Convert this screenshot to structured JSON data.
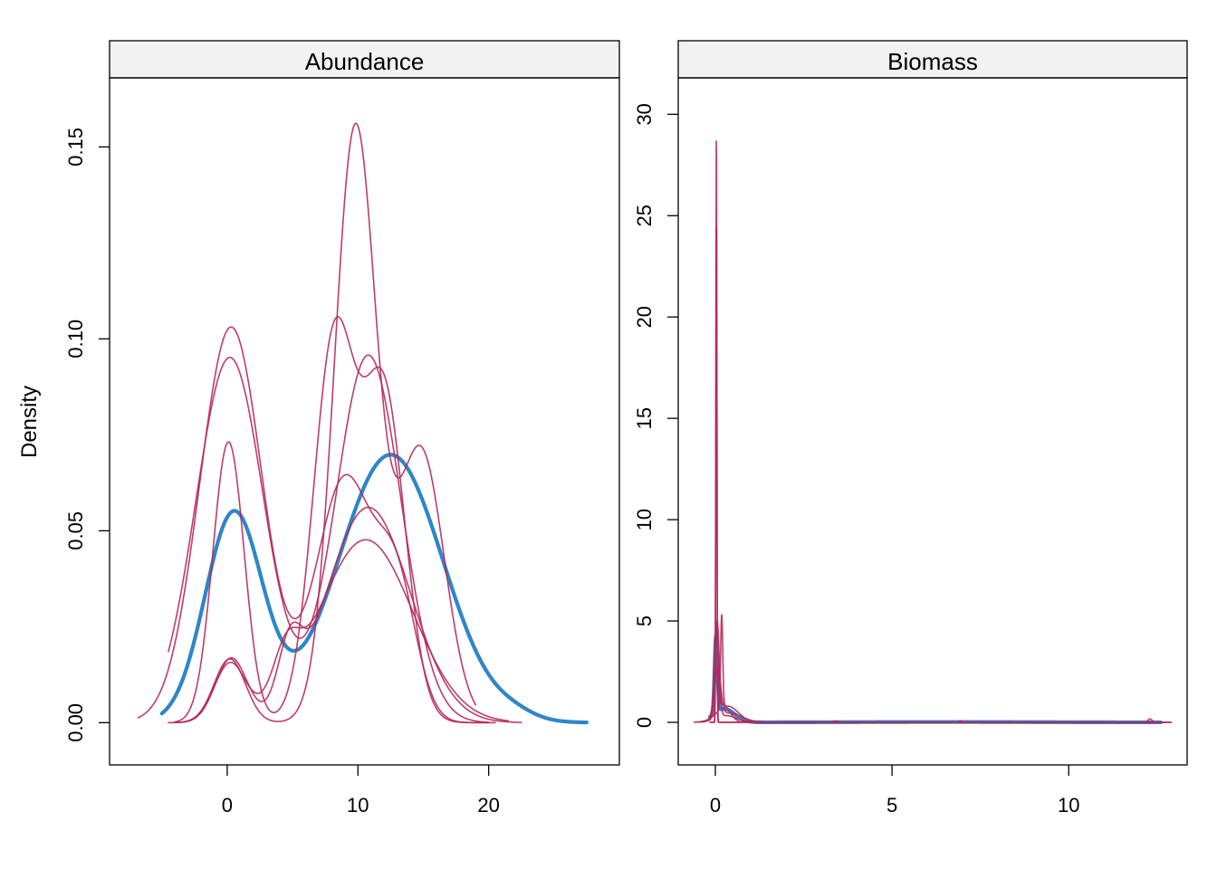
{
  "figure": {
    "ylabel": "Density"
  },
  "colors": {
    "imputed": "#B5285A",
    "observed": "#2E86C8",
    "strip": "#F2F2F2",
    "frame": "#000000"
  },
  "chart_data": [
    {
      "type": "line",
      "title": "Abundance",
      "xlabel": "",
      "ylabel": "Density",
      "xlim": [
        -9,
        30
      ],
      "ylim": [
        -0.011,
        0.168
      ],
      "xticks": [
        0,
        10,
        20
      ],
      "yticks": [
        0.0,
        0.05,
        0.1,
        0.15
      ],
      "ytick_labels": [
        "0.00",
        "0.05",
        "0.10",
        "0.15"
      ],
      "grid": false,
      "observed": {
        "components": [
          {
            "m": 0.5,
            "s": 2.2,
            "w": 0.3
          },
          {
            "m": 12.5,
            "s": 4.0,
            "w": 0.7
          },
          {
            "m": 22.0,
            "s": 1.5,
            "w": 0.005
          }
        ],
        "xrange": [
          -5.0,
          27.5
        ]
      },
      "imputed": [
        {
          "components": [
            {
              "m": 0.3,
              "s": 2.4,
              "w": 0.62
            },
            {
              "m": 9.0,
              "s": 2.2,
              "w": 0.35
            },
            {
              "m": 13.0,
              "s": 1.5,
              "w": 0.12
            }
          ],
          "xrange": [
            -6.8,
            20.5
          ]
        },
        {
          "components": [
            {
              "m": 0.2,
              "s": 2.6,
              "w": 0.62
            },
            {
              "m": 10.8,
              "s": 2.5,
              "w": 0.6
            }
          ],
          "xrange": [
            -4.5,
            20.0
          ]
        },
        {
          "components": [
            {
              "m": 0.1,
              "s": 1.2,
              "w": 0.22
            },
            {
              "m": 8.2,
              "s": 1.6,
              "w": 0.4
            },
            {
              "m": 12.0,
              "s": 1.6,
              "w": 0.34
            }
          ],
          "xrange": [
            -4.0,
            20.0
          ]
        },
        {
          "components": [
            {
              "m": 9.8,
              "s": 1.6,
              "w": 0.62
            },
            {
              "m": 14.8,
              "s": 1.8,
              "w": 0.32
            },
            {
              "m": 0.2,
              "s": 1.2,
              "w": 0.05
            }
          ],
          "xrange": [
            -3.0,
            19.0
          ]
        },
        {
          "components": [
            {
              "m": 0.3,
              "s": 1.2,
              "w": 0.05
            },
            {
              "m": 10.8,
              "s": 3.2,
              "w": 0.45
            },
            {
              "m": 4.8,
              "s": 0.9,
              "w": 0.035
            }
          ],
          "xrange": [
            -4.5,
            22.5
          ]
        },
        {
          "components": [
            {
              "m": 0.2,
              "s": 1.2,
              "w": 0.045
            },
            {
              "m": 10.6,
              "s": 3.6,
              "w": 0.43
            },
            {
              "m": 4.5,
              "s": 1.0,
              "w": 0.03
            }
          ],
          "xrange": [
            -4.0,
            21.5
          ]
        }
      ]
    },
    {
      "type": "line",
      "title": "Biomass",
      "xlabel": "",
      "ylabel": "",
      "xlim": [
        -1.05,
        13.35
      ],
      "ylim": [
        -2.1,
        31.8
      ],
      "xticks": [
        0,
        5,
        10
      ],
      "yticks": [
        0,
        5,
        10,
        15,
        20,
        25,
        30
      ],
      "ytick_labels": [
        "0",
        "5",
        "10",
        "15",
        "20",
        "25",
        "30"
      ],
      "grid": false,
      "observed": {
        "components": [
          {
            "m": 0.02,
            "s": 0.04,
            "w": 0.38
          },
          {
            "m": 0.25,
            "s": 0.3,
            "w": 0.5
          },
          {
            "m": 6.5,
            "s": 2.5,
            "w": 0.12
          }
        ],
        "xrange": [
          -0.15,
          12.6
        ]
      },
      "imputed": [
        {
          "components": [
            {
              "m": 0.03,
              "s": 0.0135,
              "w": 1.0
            }
          ],
          "xrange": [
            -0.15,
            12.7
          ]
        },
        {
          "components": [
            {
              "m": 0.03,
              "s": 0.016,
              "w": 1.0
            }
          ],
          "xrange": [
            -0.15,
            12.7
          ]
        },
        {
          "components": [
            {
              "m": 0.05,
              "s": 0.06,
              "w": 0.72
            },
            {
              "m": 0.3,
              "s": 0.3,
              "w": 0.25
            },
            {
              "m": 12.3,
              "s": 0.06,
              "w": 0.025
            }
          ],
          "xrange": [
            -0.3,
            12.9
          ]
        },
        {
          "components": [
            {
              "m": 0.06,
              "s": 0.09,
              "w": 0.55
            },
            {
              "m": 0.4,
              "s": 0.35,
              "w": 0.4
            },
            {
              "m": 6.95,
              "s": 0.05,
              "w": 0.01
            },
            {
              "m": 3.4,
              "s": 0.08,
              "w": 0.012
            }
          ],
          "xrange": [
            -0.5,
            12.9
          ]
        },
        {
          "components": [
            {
              "m": 0.18,
              "s": 0.03,
              "w": 0.35
            },
            {
              "m": 0.35,
              "s": 0.3,
              "w": 0.6
            }
          ],
          "xrange": [
            -0.6,
            12.6
          ]
        },
        {
          "components": [
            {
              "m": 0.02,
              "s": 0.05,
              "w": 0.5
            },
            {
              "m": 0.2,
              "s": 0.2,
              "w": 0.45
            }
          ],
          "xrange": [
            -0.4,
            12.5
          ]
        }
      ]
    }
  ]
}
